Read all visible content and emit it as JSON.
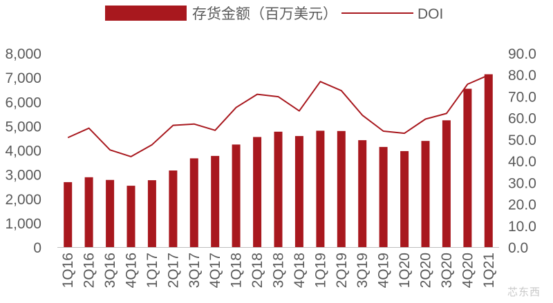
{
  "chart_data": {
    "type": "bar",
    "categories": [
      "1Q16",
      "2Q16",
      "3Q16",
      "4Q16",
      "1Q17",
      "2Q17",
      "3Q17",
      "4Q17",
      "1Q18",
      "2Q18",
      "3Q18",
      "4Q18",
      "1Q19",
      "2Q19",
      "3Q19",
      "4Q19",
      "1Q20",
      "2Q20",
      "3Q20",
      "4Q20",
      "1Q21"
    ],
    "series": [
      {
        "name": "存货金额（百万美元）",
        "kind": "bar",
        "axis": "left",
        "color": "#a8181e",
        "values": [
          2680,
          2880,
          2770,
          2530,
          2760,
          3160,
          3660,
          3760,
          4230,
          4540,
          4760,
          4580,
          4800,
          4790,
          4410,
          4130,
          3960,
          4380,
          5230,
          6530,
          7130
        ]
      },
      {
        "name": "DOI",
        "kind": "line",
        "axis": "right",
        "color": "#a8181e",
        "values": [
          50.8,
          55.2,
          45.1,
          42.0,
          47.5,
          56.5,
          57.1,
          54.2,
          64.8,
          70.9,
          69.8,
          63.2,
          76.8,
          72.6,
          61.2,
          53.8,
          52.8,
          59.4,
          62.0,
          75.6,
          79.8
        ]
      }
    ],
    "y_left": {
      "min": 0,
      "max": 8000,
      "ticks": [
        "0",
        "1,000",
        "2,000",
        "3,000",
        "4,000",
        "5,000",
        "6,000",
        "7,000",
        "8,000"
      ]
    },
    "y_right": {
      "min": 0,
      "max": 90,
      "ticks": [
        "0.0",
        "10.0",
        "20.0",
        "30.0",
        "40.0",
        "50.0",
        "60.0",
        "70.0",
        "80.0",
        "90.0"
      ]
    },
    "legend_position": "top-center",
    "grid": false
  },
  "watermark": "芯东西"
}
